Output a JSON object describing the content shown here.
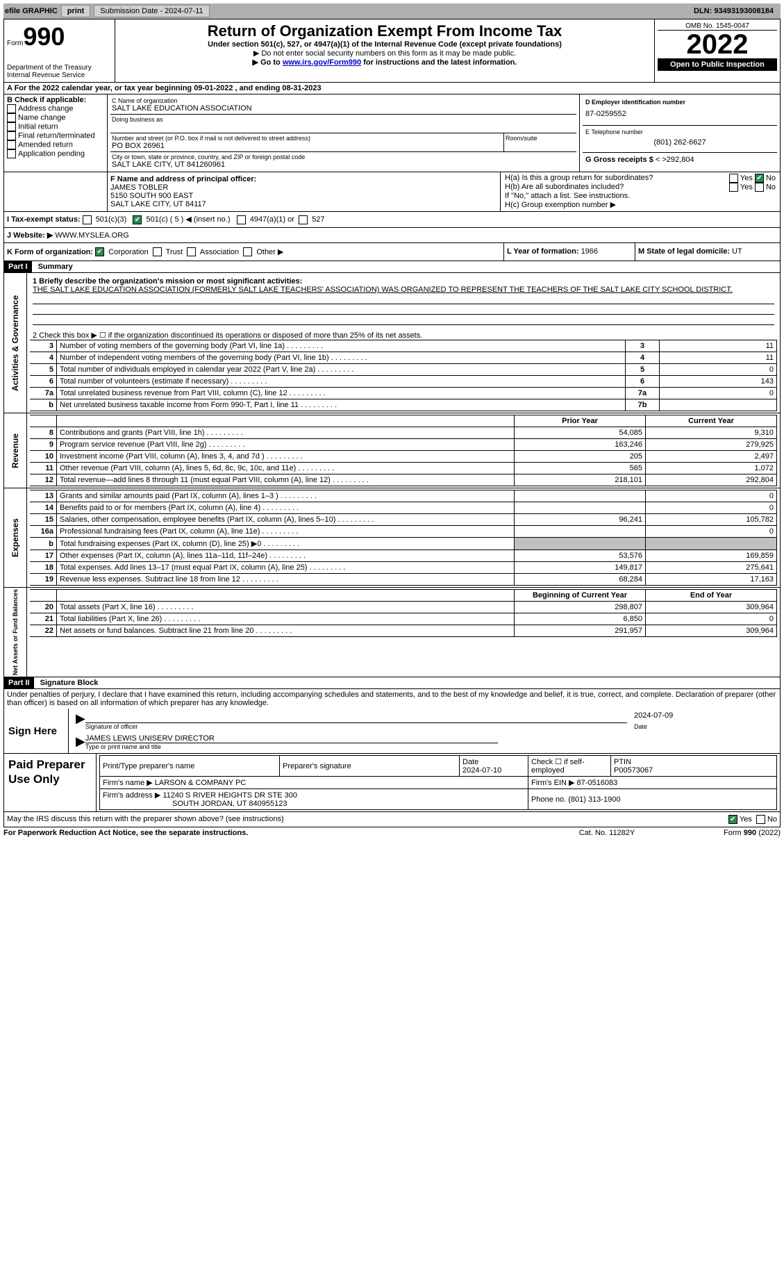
{
  "topbar": {
    "efile": "efile GRAPHIC",
    "printBtn": "print",
    "subDate": "Submission Date - 2024-07-11",
    "dln": "DLN: 93493193008184"
  },
  "header": {
    "formPrefix": "Form",
    "formNum": "990",
    "deptText": "Department of the Treasury\nInternal Revenue Service",
    "title": "Return of Organization Exempt From Income Tax",
    "subtitle": "Under section 501(c), 527, or 4947(a)(1) of the Internal Revenue Code (except private foundations)",
    "note1": "▶ Do not enter social security numbers on this form as it may be made public.",
    "note2Prefix": "▶ Go to ",
    "note2Link": "www.irs.gov/Form990",
    "note2Suffix": " for instructions and the latest information.",
    "omb": "OMB No. 1545-0047",
    "year": "2022",
    "openPublic": "Open to Public Inspection"
  },
  "periodLine": "A For the 2022 calendar year, or tax year beginning 09-01-2022    , and ending 08-31-2023",
  "sectionB": {
    "label": "B Check if applicable:",
    "opts": [
      "Address change",
      "Name change",
      "Initial return",
      "Final return/terminated",
      "Amended return",
      "Application pending"
    ]
  },
  "sectionC": {
    "nameLabel": "C Name of organization",
    "orgName": "SALT LAKE EDUCATION ASSOCIATION",
    "dbaLabel": "Doing business as",
    "streetLabel": "Number and street (or P.O. box if mail is not delivered to street address)",
    "roomLabel": "Room/suite",
    "street": "PO BOX 26961",
    "cityLabel": "City or town, state or province, country, and ZIP or foreign postal code",
    "city": "SALT LAKE CITY, UT  841260961"
  },
  "sectionD": {
    "label": "D Employer identification number",
    "ein": "87-0259552"
  },
  "sectionE": {
    "label": "E Telephone number",
    "phone": "(801) 262-6627"
  },
  "sectionG": {
    "prefix": "G Gross receipts $ ",
    "amount": "292,804"
  },
  "sectionF": {
    "label": "F Name and address of principal officer:",
    "name": "JAMES TOBLER",
    "addr1": "5150 SOUTH 900 EAST",
    "addr2": "SALT LAKE CITY, UT  84117"
  },
  "sectionH": {
    "ha": "H(a)  Is this a group return for subordinates?",
    "hb": "H(b)  Are all subordinates included?",
    "hbNote": "If \"No,\" attach a list. See instructions.",
    "hc": "H(c)  Group exemption number ▶",
    "yes": "Yes",
    "no": "No"
  },
  "taxExempt": {
    "label": "I   Tax-exempt status:",
    "o1": "501(c)(3)",
    "o2": "501(c) ( 5 ) ◀ (insert no.)",
    "o3": "4947(a)(1) or",
    "o4": "527"
  },
  "website": {
    "label": "J   Website: ▶",
    "val": "  WWW.MYSLEA.ORG"
  },
  "orgForm": {
    "label": "K Form of organization:",
    "o1": "Corporation",
    "o2": "Trust",
    "o3": "Association",
    "o4": "Other ▶"
  },
  "yearFormed": {
    "label": "L Year of formation: ",
    "val": "1966"
  },
  "domicile": {
    "label": "M State of legal domicile: ",
    "val": "UT"
  },
  "part1": {
    "hdr": "Part I",
    "title": "Summary",
    "q1": "1   Briefly describe the organization's mission or most significant activities:",
    "mission": "THE SALT LAKE EDUCATION ASSOCIATION (FORMERLY SALT LAKE TEACHERS' ASSOCIATION) WAS ORGANIZED TO REPRESENT THE TEACHERS OF THE SALT LAKE CITY SCHOOL DISTRICT.",
    "q2": "2   Check this box ▶ ☐ if the organization discontinued its operations or disposed of more than 25% of its net assets.",
    "lines": [
      {
        "n": "3",
        "d": "Number of voting members of the governing body (Part VI, line 1a)",
        "box": "3",
        "v": "11"
      },
      {
        "n": "4",
        "d": "Number of independent voting members of the governing body (Part VI, line 1b)",
        "box": "4",
        "v": "11"
      },
      {
        "n": "5",
        "d": "Total number of individuals employed in calendar year 2022 (Part V, line 2a)",
        "box": "5",
        "v": "0"
      },
      {
        "n": "6",
        "d": "Total number of volunteers (estimate if necessary)",
        "box": "6",
        "v": "143"
      },
      {
        "n": "7a",
        "d": "Total unrelated business revenue from Part VIII, column (C), line 12",
        "box": "7a",
        "v": "0"
      },
      {
        "n": "b",
        "d": "Net unrelated business taxable income from Form 990-T, Part I, line 11",
        "box": "7b",
        "v": ""
      }
    ],
    "colPrior": "Prior Year",
    "colCurr": "Current Year",
    "revenueLines": [
      {
        "n": "8",
        "d": "Contributions and grants (Part VIII, line 1h)",
        "p": "54,085",
        "c": "9,310"
      },
      {
        "n": "9",
        "d": "Program service revenue (Part VIII, line 2g)",
        "p": "163,246",
        "c": "279,925"
      },
      {
        "n": "10",
        "d": "Investment income (Part VIII, column (A), lines 3, 4, and 7d )",
        "p": "205",
        "c": "2,497"
      },
      {
        "n": "11",
        "d": "Other revenue (Part VIII, column (A), lines 5, 6d, 8c, 9c, 10c, and 11e)",
        "p": "565",
        "c": "1,072"
      },
      {
        "n": "12",
        "d": "Total revenue—add lines 8 through 11 (must equal Part VIII, column (A), line 12)",
        "p": "218,101",
        "c": "292,804"
      }
    ],
    "expenseLines": [
      {
        "n": "13",
        "d": "Grants and similar amounts paid (Part IX, column (A), lines 1–3 )",
        "p": "",
        "c": "0"
      },
      {
        "n": "14",
        "d": "Benefits paid to or for members (Part IX, column (A), line 4)",
        "p": "",
        "c": "0"
      },
      {
        "n": "15",
        "d": "Salaries, other compensation, employee benefits (Part IX, column (A), lines 5–10)",
        "p": "96,241",
        "c": "105,782"
      },
      {
        "n": "16a",
        "d": "Professional fundraising fees (Part IX, column (A), line 11e)",
        "p": "",
        "c": "0"
      },
      {
        "n": "b",
        "d": "Total fundraising expenses (Part IX, column (D), line 25) ▶0",
        "p": "gray",
        "c": "gray"
      },
      {
        "n": "17",
        "d": "Other expenses (Part IX, column (A), lines 11a–11d, 11f–24e)",
        "p": "53,576",
        "c": "169,859"
      },
      {
        "n": "18",
        "d": "Total expenses. Add lines 13–17 (must equal Part IX, column (A), line 25)",
        "p": "149,817",
        "c": "275,641"
      },
      {
        "n": "19",
        "d": "Revenue less expenses. Subtract line 18 from line 12",
        "p": "68,284",
        "c": "17,163"
      }
    ],
    "colBeg": "Beginning of Current Year",
    "colEnd": "End of Year",
    "netLines": [
      {
        "n": "20",
        "d": "Total assets (Part X, line 16)",
        "p": "298,807",
        "c": "309,964"
      },
      {
        "n": "21",
        "d": "Total liabilities (Part X, line 26)",
        "p": "6,850",
        "c": "0"
      },
      {
        "n": "22",
        "d": "Net assets or fund balances. Subtract line 21 from line 20",
        "p": "291,957",
        "c": "309,964"
      }
    ],
    "sideLabels": {
      "ag": "Activities & Governance",
      "rev": "Revenue",
      "exp": "Expenses",
      "net": "Net Assets or\nFund Balances"
    }
  },
  "part2": {
    "hdr": "Part II",
    "title": "Signature Block",
    "decl": "Under penalties of perjury, I declare that I have examined this return, including accompanying schedules and statements, and to the best of my knowledge and belief, it is true, correct, and complete. Declaration of preparer (other than officer) is based on all information of which preparer has any knowledge.",
    "signHere": "Sign Here",
    "sigOfficer": "Signature of officer",
    "sigDate": "2024-07-09",
    "dateLabel": "Date",
    "officerName": "JAMES LEWIS  UNISERV DIRECTOR",
    "typeLabel": "Type or print name and title",
    "paid": "Paid Preparer Use Only",
    "prepName": "Print/Type preparer's name",
    "prepSig": "Preparer's signature",
    "prepDate": "2024-07-10",
    "selfEmp": "Check ☐ if self-employed",
    "ptinLabel": "PTIN",
    "ptin": "P00573067",
    "firmName": "Firm's name      ▶ LARSON & COMPANY PC",
    "firmEin": "Firm's EIN ▶ 87-0516083",
    "firmAddr": "Firm's address ▶ 11240 S RIVER HEIGHTS DR STE 300",
    "firmCity": "SOUTH JORDAN, UT  840955123",
    "firmPhone": "Phone no. (801) 313-1900",
    "discuss": "May the IRS discuss this return with the preparer shown above? (see instructions)"
  },
  "footer": {
    "paperwork": "For Paperwork Reduction Act Notice, see the separate instructions.",
    "cat": "Cat. No. 11282Y",
    "formRef": "Form 990 (2022)"
  }
}
